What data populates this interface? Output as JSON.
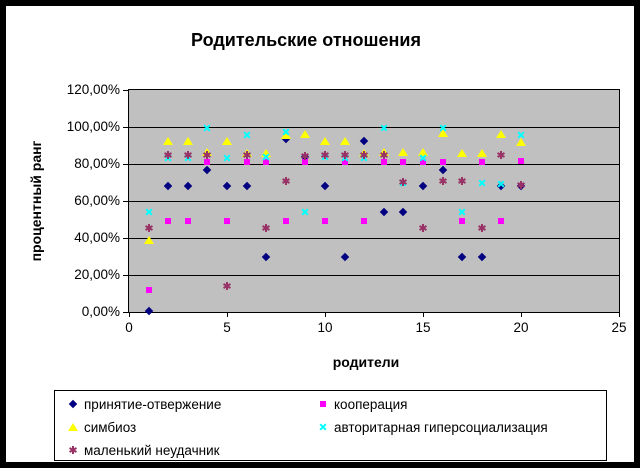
{
  "chart_data": {
    "type": "scatter",
    "title": "Родительские отношения",
    "xlabel": "родители",
    "ylabel": "процентный ранг",
    "plot_bg_color": "#C0C0C0",
    "grid": true,
    "legend_position": "bottom",
    "xlim": [
      0,
      25
    ],
    "ylim_percent": [
      0,
      120
    ],
    "x_ticks": [
      0,
      5,
      10,
      15,
      20,
      25
    ],
    "y_ticks_percent": [
      0,
      20,
      40,
      60,
      80,
      100,
      120
    ],
    "y_tick_labels": [
      "0,00%",
      "20,00%",
      "40,00%",
      "60,00%",
      "80,00%",
      "100,00%",
      "120,00%"
    ],
    "x": [
      1,
      2,
      3,
      4,
      5,
      6,
      7,
      8,
      9,
      10,
      11,
      12,
      13,
      14,
      15,
      16,
      17,
      18,
      19,
      20
    ],
    "series": [
      {
        "name": "принятие-отвержение",
        "marker": "diamond",
        "color": "#000080",
        "values": [
          0.5,
          68,
          68,
          76.5,
          68,
          68,
          30,
          93.5,
          84,
          68,
          30,
          92.5,
          54,
          54,
          68,
          76.5,
          30,
          30,
          68,
          68
        ]
      },
      {
        "name": "кооперация",
        "marker": "square",
        "color": "#FF00FF",
        "values": [
          12,
          49,
          49,
          81,
          49,
          81,
          81,
          49,
          81,
          49,
          81,
          49,
          81,
          81,
          81,
          81,
          49,
          81,
          49,
          81.5
        ]
      },
      {
        "name": "симбиоз",
        "marker": "triangle",
        "color": "#FFFF00",
        "values": [
          39,
          92.5,
          92.5,
          86.5,
          92.5,
          86,
          86,
          95.5,
          96,
          92.5,
          92.5,
          86,
          86.5,
          86.5,
          86.5,
          96.5,
          86,
          86,
          96,
          92
        ]
      },
      {
        "name": "авторитарная гиперсоциализация",
        "marker": "x",
        "color": "#00FFFF",
        "values": [
          54,
          83.5,
          83.5,
          99.5,
          83.5,
          95.5,
          84,
          97.5,
          54,
          84,
          83.5,
          83.5,
          99.5,
          69.5,
          83.5,
          99.5,
          54,
          69.5,
          69,
          95.5
        ]
      },
      {
        "name": "маленький неудачник",
        "marker": "asterisk",
        "color": "#993366",
        "values": [
          45.5,
          85,
          85,
          85,
          14,
          85,
          45.5,
          71,
          84.5,
          85,
          85,
          85,
          85,
          70.5,
          45.5,
          71,
          71,
          45.5,
          85,
          68.5
        ]
      }
    ]
  }
}
